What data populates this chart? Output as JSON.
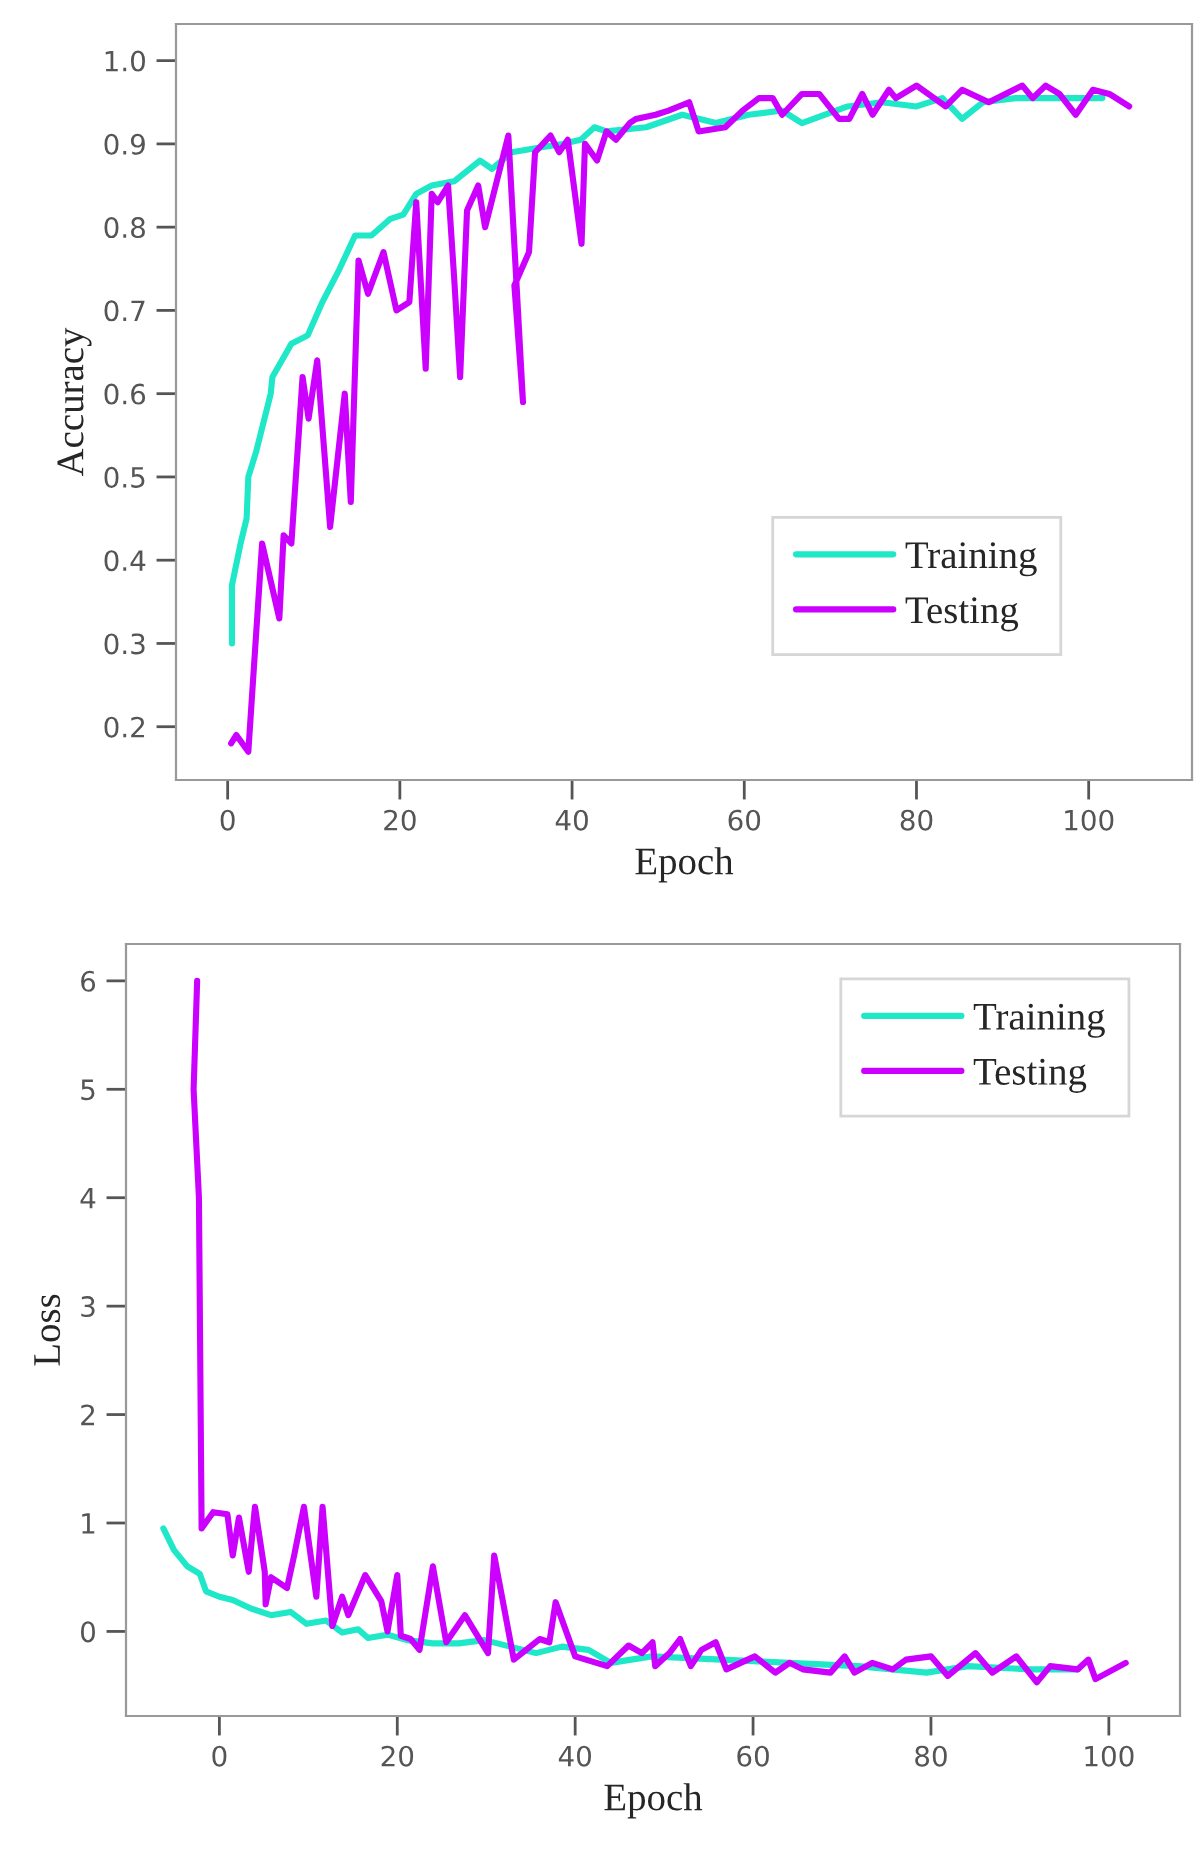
{
  "chart_data": [
    {
      "type": "line",
      "xlabel": "Epoch",
      "ylabel": "Accuracy",
      "xlim": [
        -6,
        112
      ],
      "ylim": [
        0.136,
        1.044
      ],
      "xticks": [
        0,
        20,
        40,
        60,
        80,
        100
      ],
      "yticks": [
        0.2,
        0.3,
        0.4,
        0.5,
        0.6,
        0.7,
        0.8,
        0.9,
        {
          "value": 1,
          "label": "1.0"
        }
      ],
      "grid": false,
      "legend": "bottom right",
      "line_style": "solid",
      "series": [
        {
          "name": "Training",
          "color": "#1ee8c8",
          "x": [
            0.5,
            0.5,
            1.5,
            2.2,
            2.4,
            3.3,
            5,
            5.2,
            7.4,
            9.3,
            11,
            13,
            14.8,
            16.7,
            18.9,
            20.4,
            21.9,
            23.7,
            26.3,
            29.3,
            30.7,
            33,
            35.9,
            38.9,
            41,
            42.6,
            44,
            48.6,
            52.8,
            56.7,
            60.5,
            64.4,
            66.7,
            72,
            76,
            80,
            83,
            85.3,
            87.7,
            91.5,
            95,
            99,
            101.6
          ],
          "values": [
            0.3,
            0.37,
            0.42,
            0.45,
            0.5,
            0.53,
            0.6,
            0.62,
            0.66,
            0.67,
            0.71,
            0.75,
            0.79,
            0.79,
            0.81,
            0.815,
            0.84,
            0.85,
            0.855,
            0.88,
            0.87,
            0.89,
            0.895,
            0.9,
            0.905,
            0.92,
            0.915,
            0.92,
            0.935,
            0.925,
            0.935,
            0.94,
            0.925,
            0.945,
            0.95,
            0.945,
            0.955,
            0.93,
            0.95,
            0.955,
            0.955,
            0.955,
            0.955
          ]
        },
        {
          "name": "Testing",
          "color": "#cc00ff",
          "x": [
            0.4,
            1,
            2.4,
            4,
            6,
            6.5,
            7.4,
            8.7,
            9.4,
            10.4,
            11.9,
            13.6,
            14.3,
            15.2,
            16.3,
            18.1,
            19.6,
            21.1,
            21.9,
            23,
            23.7,
            24.4,
            25.6,
            26.3,
            27,
            27.8,
            29.1,
            29.9,
            32.6,
            34.3,
            33.3,
            35,
            35.7,
            37.5,
            38.5,
            39.5,
            41.1,
            41.5,
            42.9,
            44,
            45.1,
            46.7,
            47.4,
            49.7,
            51.2,
            53.6,
            54.7,
            57.8,
            59.8,
            61.7,
            63.3,
            64.4,
            66.7,
            68.7,
            71,
            72.2,
            73.7,
            74.9,
            76.8,
            77.6,
            80,
            83.4,
            85.3,
            88.4,
            92.3,
            93.5,
            95,
            96.6,
            98.5,
            100.5,
            102.4,
            104.7
          ],
          "values": [
            0.18,
            0.19,
            0.17,
            0.42,
            0.33,
            0.43,
            0.42,
            0.62,
            0.57,
            0.64,
            0.44,
            0.6,
            0.47,
            0.76,
            0.72,
            0.77,
            0.7,
            0.71,
            0.83,
            0.63,
            0.84,
            0.83,
            0.85,
            0.74,
            0.62,
            0.82,
            0.85,
            0.8,
            0.91,
            0.59,
            0.73,
            0.77,
            0.89,
            0.91,
            0.89,
            0.905,
            0.78,
            0.9,
            0.88,
            0.915,
            0.905,
            0.925,
            0.93,
            0.935,
            0.94,
            0.95,
            0.915,
            0.92,
            0.94,
            0.955,
            0.955,
            0.935,
            0.96,
            0.96,
            0.93,
            0.93,
            0.96,
            0.935,
            0.965,
            0.955,
            0.97,
            0.945,
            0.965,
            0.95,
            0.97,
            0.955,
            0.97,
            0.96,
            0.935,
            0.965,
            0.96,
            0.945
          ]
        }
      ]
    },
    {
      "type": "line",
      "xlabel": "Epoch",
      "ylabel": "Loss",
      "xlim": [
        -10.5,
        108
      ],
      "ylim": [
        -0.78,
        6.34
      ],
      "xticks": [
        0,
        20,
        40,
        60,
        80,
        100
      ],
      "yticks": [
        0,
        1,
        2,
        3,
        4,
        5,
        6
      ],
      "grid": false,
      "legend": "top right",
      "line_style": "solid",
      "series": [
        {
          "name": "Training",
          "color": "#1ee8c8",
          "x": [
            -6.3,
            -5.1,
            -3.6,
            -2.2,
            -1.5,
            0,
            1.5,
            3.6,
            5.8,
            8,
            9.8,
            12,
            13.8,
            15.6,
            16.7,
            18.9,
            21.1,
            24,
            26.9,
            29.8,
            32.7,
            35.6,
            38.5,
            41.5,
            44,
            48.6,
            56.4,
            64.1,
            71.8,
            79.5,
            84.2,
            91.1,
            96.5
          ],
          "values": [
            0.95,
            0.75,
            0.6,
            0.53,
            0.37,
            0.32,
            0.29,
            0.21,
            0.15,
            0.18,
            0.07,
            0.1,
            -0.01,
            0.02,
            -0.06,
            -0.03,
            -0.08,
            -0.11,
            -0.11,
            -0.08,
            -0.14,
            -0.2,
            -0.14,
            -0.17,
            -0.29,
            -0.23,
            -0.26,
            -0.29,
            -0.32,
            -0.38,
            -0.32,
            -0.35,
            -0.35
          ]
        },
        {
          "name": "Testing",
          "color": "#cc00ff",
          "x": [
            -2.5,
            -2.9,
            -2.3,
            -2,
            -0.7,
            0.9,
            1.5,
            2.2,
            3.3,
            4,
            5.1,
            5.2,
            5.8,
            7.6,
            8.4,
            9.5,
            10.9,
            11.6,
            12.7,
            13.8,
            14.5,
            16.4,
            18.2,
            18.9,
            20,
            20.4,
            21.5,
            22.5,
            24,
            25.5,
            27.6,
            30.2,
            30.9,
            33.1,
            36,
            37.1,
            37.8,
            40,
            43.6,
            46,
            47.5,
            48.7,
            49,
            50.6,
            51.8,
            53,
            54.2,
            55.8,
            57,
            60.2,
            62.5,
            64.1,
            65.6,
            68.7,
            70.3,
            71.4,
            73.4,
            75.7,
            77.2,
            80,
            81.9,
            85,
            86.9,
            89.6,
            91.9,
            93.4,
            96.5,
            97.7,
            98.5,
            101.9
          ],
          "values": [
            6.0,
            5.0,
            4.0,
            0.95,
            1.1,
            1.08,
            0.7,
            1.05,
            0.55,
            1.15,
            0.55,
            0.25,
            0.5,
            0.4,
            0.7,
            1.15,
            0.32,
            1.15,
            0.05,
            0.32,
            0.15,
            0.52,
            0.28,
            0,
            0.52,
            -0.04,
            -0.07,
            -0.17,
            0.6,
            -0.1,
            0.15,
            -0.2,
            0.7,
            -0.26,
            -0.07,
            -0.1,
            0.27,
            -0.23,
            -0.32,
            -0.13,
            -0.2,
            -0.1,
            -0.32,
            -0.2,
            -0.07,
            -0.32,
            -0.17,
            -0.1,
            -0.35,
            -0.23,
            -0.38,
            -0.29,
            -0.35,
            -0.38,
            -0.23,
            -0.38,
            -0.29,
            -0.35,
            -0.26,
            -0.23,
            -0.41,
            -0.2,
            -0.38,
            -0.23,
            -0.47,
            -0.32,
            -0.35,
            -0.26,
            -0.44,
            -0.29
          ]
        }
      ]
    }
  ]
}
